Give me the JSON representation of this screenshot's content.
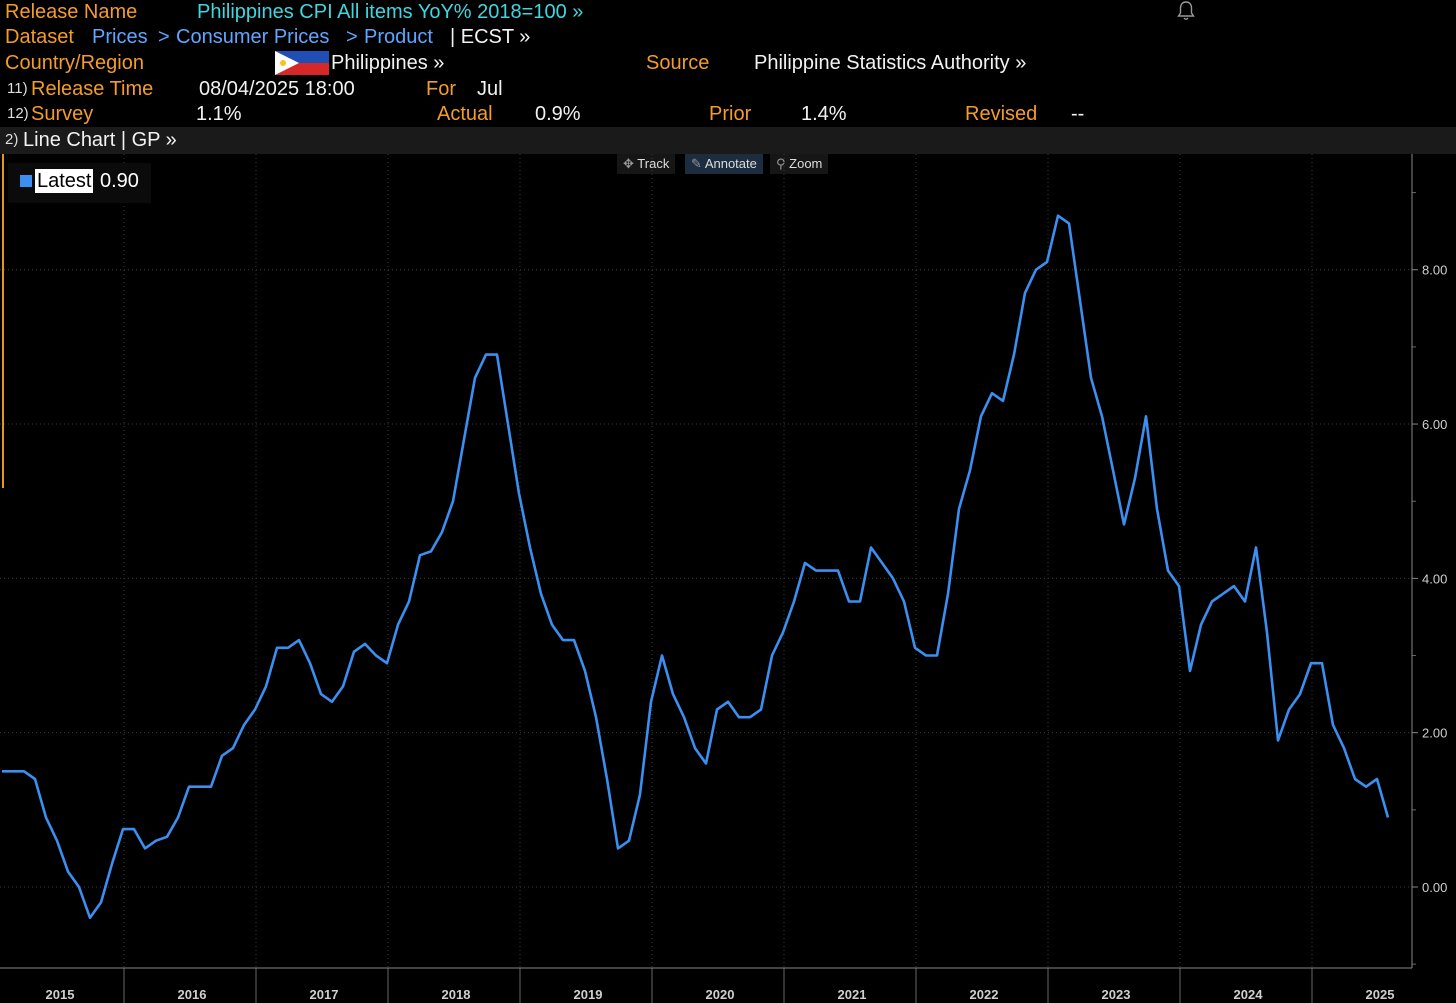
{
  "header": {
    "release_name_label": "Release Name",
    "release_name_value": "Philippines CPI All items YoY% 2018=100 »",
    "dataset_label": "Dataset",
    "crumb_prices": "Prices",
    "crumb_sep1": ">",
    "crumb_consumer": "Consumer Prices",
    "crumb_sep2": ">",
    "crumb_product": "Product",
    "crumb_ecst": "| ECST »",
    "country_label": "Country/Region",
    "country_value": "Philippines »",
    "source_label": "Source",
    "source_value": "Philippine Statistics Authority »",
    "release_time_num": "11)",
    "release_time_label": "Release Time",
    "release_time_value": "08/04/2025 18:00",
    "for_label": "For",
    "for_value": "Jul",
    "survey_num": "12)",
    "survey_label": "Survey",
    "survey_value": "1.1%",
    "actual_label": "Actual",
    "actual_value": "0.9%",
    "prior_label": "Prior",
    "prior_value": "1.4%",
    "revised_label": "Revised",
    "revised_value": "--",
    "chart_num": "2)",
    "chart_menu": "Line Chart | GP »"
  },
  "toolbar": {
    "track": "Track",
    "annotate": "Annotate",
    "zoom": "Zoom"
  },
  "legend": {
    "label": "Latest",
    "value": "0.90"
  },
  "colors": {
    "line": "#3b8ff0",
    "accent_orange": "#f39c2a",
    "accent_cyan": "#3fd6e0",
    "link_blue": "#5ea6ff"
  },
  "chart_data": {
    "type": "line",
    "title": "Philippines CPI All items YoY% 2018=100",
    "xlabel": "",
    "ylabel": "",
    "ylim": [
      -1.05,
      9.5
    ],
    "yticks": [
      0,
      2,
      4,
      6,
      8
    ],
    "ytick_labels": [
      "0.00",
      "2.00",
      "4.00",
      "6.00",
      "8.00"
    ],
    "years": [
      "2015",
      "2016",
      "2017",
      "2018",
      "2019",
      "2020",
      "2021",
      "2022",
      "2023",
      "2024",
      "2025"
    ],
    "start": "2015-01",
    "series": [
      {
        "name": "Latest",
        "values": [
          1.5,
          1.5,
          1.5,
          1.4,
          0.9,
          0.6,
          0.2,
          0.0,
          -0.4,
          -0.2,
          0.3,
          0.75,
          0.75,
          0.5,
          0.6,
          0.65,
          0.9,
          1.3,
          1.3,
          1.3,
          1.7,
          1.8,
          2.1,
          2.3,
          2.6,
          3.1,
          3.1,
          3.2,
          2.9,
          2.5,
          2.4,
          2.6,
          3.05,
          3.15,
          3.0,
          2.9,
          3.4,
          3.7,
          4.3,
          4.35,
          4.6,
          5.0,
          5.8,
          6.6,
          6.9,
          6.9,
          6.0,
          5.1,
          4.4,
          3.8,
          3.4,
          3.2,
          3.2,
          2.8,
          2.2,
          1.4,
          0.5,
          0.6,
          1.2,
          2.4,
          3.0,
          2.5,
          2.2,
          1.8,
          1.6,
          2.3,
          2.4,
          2.2,
          2.2,
          2.3,
          3.0,
          3.3,
          3.7,
          4.2,
          4.1,
          4.1,
          4.1,
          3.7,
          3.7,
          4.4,
          4.2,
          4.0,
          3.7,
          3.1,
          3.0,
          3.0,
          3.8,
          4.9,
          5.4,
          6.1,
          6.4,
          6.3,
          6.9,
          7.7,
          8.0,
          8.1,
          8.7,
          8.6,
          7.6,
          6.6,
          6.1,
          5.4,
          4.7,
          5.3,
          6.1,
          4.9,
          4.1,
          3.9,
          2.8,
          3.4,
          3.7,
          3.8,
          3.9,
          3.7,
          4.4,
          3.3,
          1.9,
          2.3,
          2.5,
          2.9,
          2.9,
          2.1,
          1.8,
          1.4,
          1.3,
          1.4,
          0.9
        ]
      }
    ],
    "latest": 0.9
  }
}
